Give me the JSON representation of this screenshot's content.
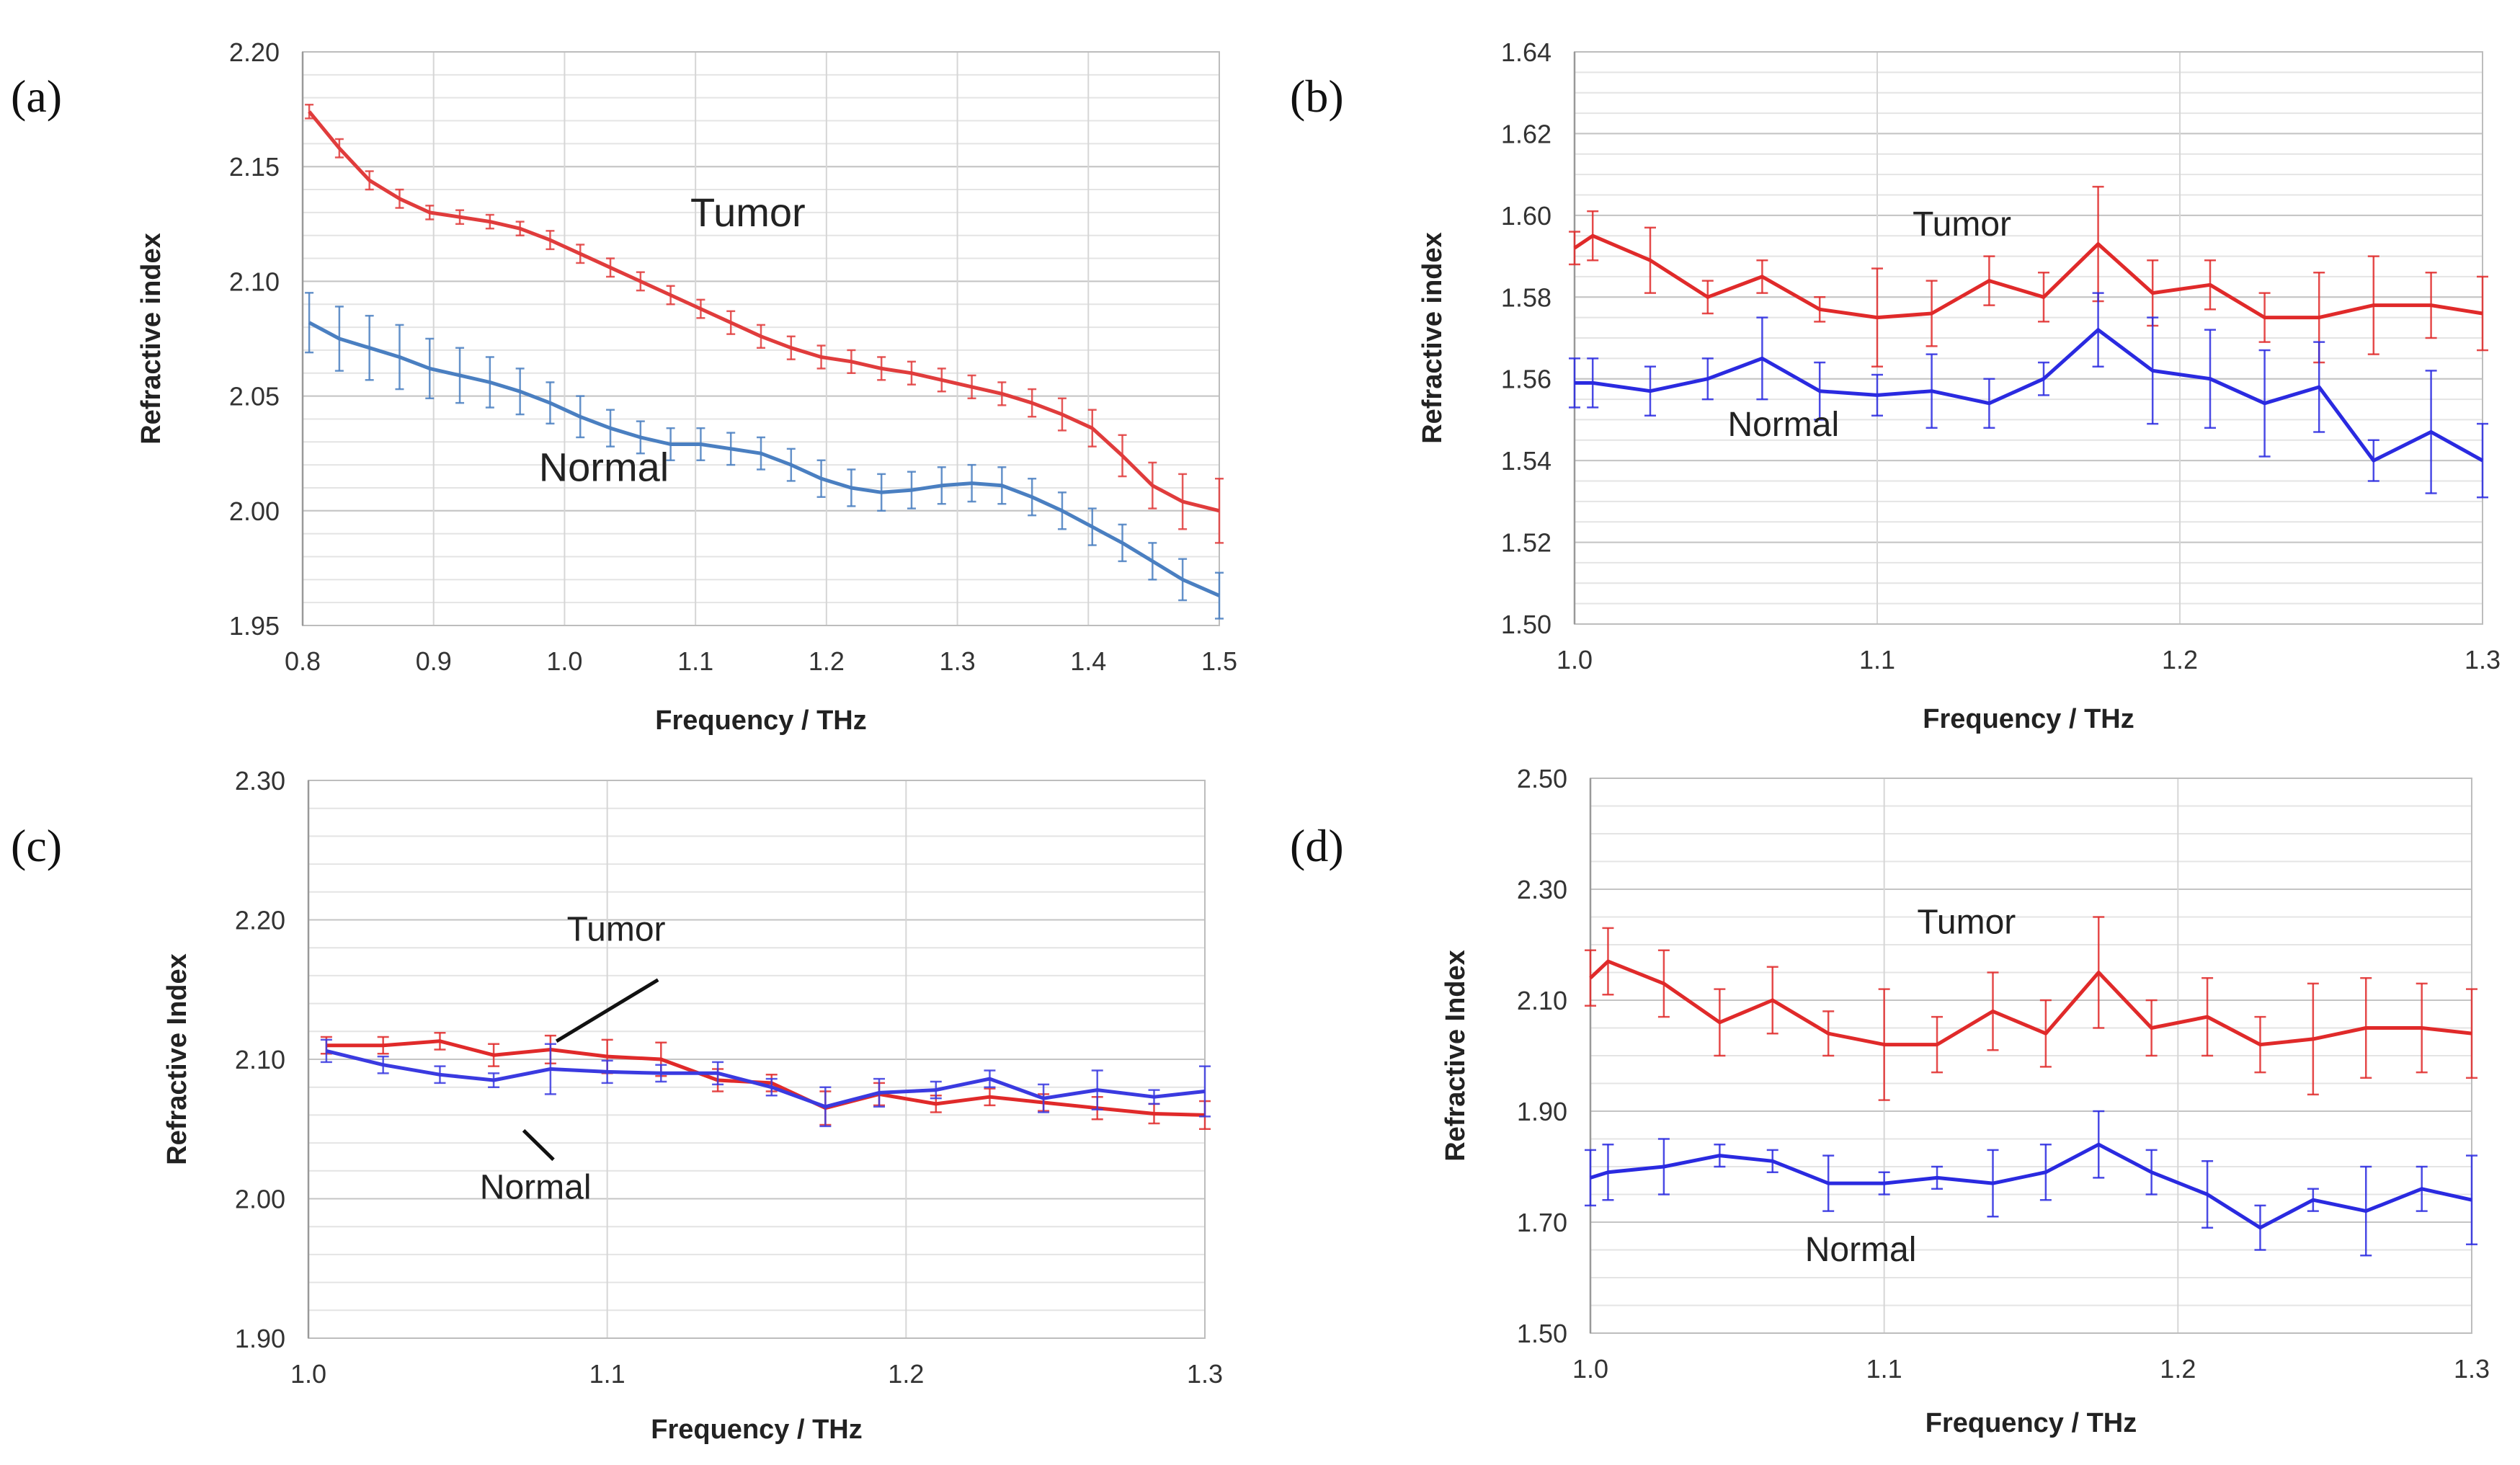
{
  "chart_data": [
    {
      "id": "a",
      "type": "line",
      "panel_label": "(a)",
      "xlabel": "Frequency / THz",
      "ylabel": "Refractive index",
      "xlim": [
        0.8,
        1.5
      ],
      "ylim": [
        1.95,
        2.2
      ],
      "xticks": [
        0.8,
        0.9,
        1.0,
        1.1,
        1.2,
        1.3,
        1.4,
        1.5
      ],
      "xtick_labels": [
        "0.8",
        "0.9",
        "1.0",
        "1.1",
        "1.2",
        "1.3",
        "1.4",
        "1.5"
      ],
      "yticks": [
        1.95,
        2.0,
        2.05,
        2.1,
        2.15,
        2.2
      ],
      "ytick_labels": [
        "1.95",
        "2.00",
        "2.05",
        "2.10",
        "2.15",
        "2.20"
      ],
      "minor_grid_step": 0.01,
      "annotations": [
        {
          "text": "Tumor",
          "x": 1.14,
          "y": 2.124
        },
        {
          "text": "Normal",
          "x": 1.03,
          "y": 2.013
        }
      ],
      "series": [
        {
          "name": "Tumor",
          "color": "#e03c3c",
          "x": [
            0.805,
            0.828,
            0.851,
            0.874,
            0.897,
            0.92,
            0.943,
            0.966,
            0.989,
            1.012,
            1.035,
            1.058,
            1.081,
            1.104,
            1.127,
            1.15,
            1.173,
            1.196,
            1.219,
            1.242,
            1.265,
            1.288,
            1.311,
            1.334,
            1.357,
            1.38,
            1.403,
            1.426,
            1.449,
            1.472,
            1.5
          ],
          "values": [
            2.174,
            2.158,
            2.144,
            2.136,
            2.13,
            2.128,
            2.126,
            2.123,
            2.118,
            2.112,
            2.106,
            2.1,
            2.094,
            2.088,
            2.082,
            2.076,
            2.071,
            2.067,
            2.065,
            2.062,
            2.06,
            2.057,
            2.054,
            2.051,
            2.047,
            2.042,
            2.036,
            2.024,
            2.011,
            2.004,
            2.0
          ],
          "error": [
            0.003,
            0.004,
            0.004,
            0.004,
            0.003,
            0.003,
            0.003,
            0.003,
            0.004,
            0.004,
            0.004,
            0.004,
            0.004,
            0.004,
            0.005,
            0.005,
            0.005,
            0.005,
            0.005,
            0.005,
            0.005,
            0.005,
            0.005,
            0.005,
            0.006,
            0.007,
            0.008,
            0.009,
            0.01,
            0.012,
            0.014
          ]
        },
        {
          "name": "Normal",
          "color": "#4a7fc1",
          "x": [
            0.805,
            0.828,
            0.851,
            0.874,
            0.897,
            0.92,
            0.943,
            0.966,
            0.989,
            1.012,
            1.035,
            1.058,
            1.081,
            1.104,
            1.127,
            1.15,
            1.173,
            1.196,
            1.219,
            1.242,
            1.265,
            1.288,
            1.311,
            1.334,
            1.357,
            1.38,
            1.403,
            1.426,
            1.449,
            1.472,
            1.5
          ],
          "values": [
            2.082,
            2.075,
            2.071,
            2.067,
            2.062,
            2.059,
            2.056,
            2.052,
            2.047,
            2.041,
            2.036,
            2.032,
            2.029,
            2.029,
            2.027,
            2.025,
            2.02,
            2.014,
            2.01,
            2.008,
            2.009,
            2.011,
            2.012,
            2.011,
            2.006,
            2.0,
            1.993,
            1.986,
            1.978,
            1.97,
            1.963
          ],
          "error": [
            0.013,
            0.014,
            0.014,
            0.014,
            0.013,
            0.012,
            0.011,
            0.01,
            0.009,
            0.009,
            0.008,
            0.007,
            0.007,
            0.007,
            0.007,
            0.007,
            0.007,
            0.008,
            0.008,
            0.008,
            0.008,
            0.008,
            0.008,
            0.008,
            0.008,
            0.008,
            0.008,
            0.008,
            0.008,
            0.009,
            0.01
          ]
        }
      ]
    },
    {
      "id": "b",
      "type": "line",
      "panel_label": "(b)",
      "xlabel": "Frequency / THz",
      "ylabel": "Refractive index",
      "xlim": [
        1.0,
        1.3
      ],
      "ylim": [
        1.5,
        1.64
      ],
      "xticks": [
        1.0,
        1.1,
        1.2,
        1.3
      ],
      "xtick_labels": [
        "1.0",
        "1.1",
        "1.2",
        "1.3"
      ],
      "yticks": [
        1.5,
        1.52,
        1.54,
        1.56,
        1.58,
        1.6,
        1.62,
        1.64
      ],
      "ytick_labels": [
        "1.50",
        "1.52",
        "1.54",
        "1.56",
        "1.58",
        "1.60",
        "1.62",
        "1.64"
      ],
      "minor_grid_step": 0.005,
      "annotations": [
        {
          "text": "Tumor",
          "x": 1.128,
          "y": 1.595
        },
        {
          "text": "Normal",
          "x": 1.069,
          "y": 1.546
        }
      ],
      "series": [
        {
          "name": "Tumor",
          "color": "#e02a2a",
          "x": [
            1.0,
            1.006,
            1.025,
            1.044,
            1.062,
            1.081,
            1.1,
            1.118,
            1.137,
            1.155,
            1.173,
            1.191,
            1.21,
            1.228,
            1.246,
            1.264,
            1.283,
            1.3
          ],
          "values": [
            1.592,
            1.595,
            1.589,
            1.58,
            1.585,
            1.577,
            1.575,
            1.576,
            1.584,
            1.58,
            1.593,
            1.581,
            1.583,
            1.575,
            1.575,
            1.578,
            1.578,
            1.576
          ],
          "error": [
            0.004,
            0.006,
            0.008,
            0.004,
            0.004,
            0.003,
            0.012,
            0.008,
            0.006,
            0.006,
            0.014,
            0.008,
            0.006,
            0.006,
            0.011,
            0.012,
            0.008,
            0.009
          ]
        },
        {
          "name": "Normal",
          "color": "#2a2ae0",
          "x": [
            1.0,
            1.006,
            1.025,
            1.044,
            1.062,
            1.081,
            1.1,
            1.118,
            1.137,
            1.155,
            1.173,
            1.191,
            1.21,
            1.228,
            1.246,
            1.264,
            1.283,
            1.3
          ],
          "values": [
            1.559,
            1.559,
            1.557,
            1.56,
            1.565,
            1.557,
            1.556,
            1.557,
            1.554,
            1.56,
            1.572,
            1.562,
            1.56,
            1.554,
            1.558,
            1.54,
            1.547,
            1.54
          ],
          "error": [
            0.006,
            0.006,
            0.006,
            0.005,
            0.01,
            0.007,
            0.005,
            0.009,
            0.006,
            0.004,
            0.009,
            0.013,
            0.012,
            0.013,
            0.011,
            0.005,
            0.015,
            0.009
          ]
        }
      ]
    },
    {
      "id": "c",
      "type": "line",
      "panel_label": "(c)",
      "xlabel": "Frequency / THz",
      "ylabel": "Refractive Index",
      "xlim": [
        1.0,
        1.3
      ],
      "ylim": [
        1.9,
        2.3
      ],
      "xticks": [
        1.0,
        1.1,
        1.2,
        1.3
      ],
      "xtick_labels": [
        "1.0",
        "1.1",
        "1.2",
        "1.3"
      ],
      "yticks": [
        1.9,
        2.0,
        2.1,
        2.2,
        2.3
      ],
      "ytick_labels": [
        "1.90",
        "2.00",
        "2.10",
        "2.20",
        "2.30"
      ],
      "minor_grid_step": 0.02,
      "annotations": [
        {
          "text": "Tumor",
          "x": 1.103,
          "y": 2.185
        },
        {
          "text": "Normal",
          "x": 1.076,
          "y": 2.0
        }
      ],
      "pointers": [
        {
          "from": [
            1.117,
            2.157
          ],
          "to": [
            1.083,
            2.113
          ]
        },
        {
          "from": [
            1.082,
            2.028
          ],
          "to": [
            1.072,
            2.049
          ]
        }
      ],
      "series": [
        {
          "name": "Tumor",
          "color": "#e02a2a",
          "x": [
            1.006,
            1.025,
            1.044,
            1.062,
            1.081,
            1.1,
            1.118,
            1.137,
            1.155,
            1.173,
            1.191,
            1.21,
            1.228,
            1.246,
            1.264,
            1.283,
            1.3
          ],
          "values": [
            2.11,
            2.11,
            2.113,
            2.103,
            2.107,
            2.102,
            2.1,
            2.085,
            2.083,
            2.065,
            2.075,
            2.068,
            2.073,
            2.069,
            2.065,
            2.061,
            2.06
          ],
          "error": [
            0.006,
            0.006,
            0.006,
            0.008,
            0.01,
            0.012,
            0.012,
            0.008,
            0.006,
            0.012,
            0.008,
            0.006,
            0.006,
            0.006,
            0.008,
            0.007,
            0.01
          ]
        },
        {
          "name": "Normal",
          "color": "#3a3ae0",
          "x": [
            1.006,
            1.025,
            1.044,
            1.062,
            1.081,
            1.1,
            1.118,
            1.137,
            1.155,
            1.173,
            1.191,
            1.21,
            1.228,
            1.246,
            1.264,
            1.283,
            1.3
          ],
          "values": [
            2.106,
            2.096,
            2.089,
            2.085,
            2.093,
            2.091,
            2.09,
            2.09,
            2.08,
            2.066,
            2.076,
            2.078,
            2.086,
            2.072,
            2.078,
            2.073,
            2.077
          ],
          "error": [
            0.008,
            0.006,
            0.006,
            0.005,
            0.018,
            0.008,
            0.006,
            0.008,
            0.006,
            0.014,
            0.01,
            0.006,
            0.006,
            0.01,
            0.014,
            0.005,
            0.018
          ]
        }
      ]
    },
    {
      "id": "d",
      "type": "line",
      "panel_label": "(d)",
      "xlabel": "Frequency / THz",
      "ylabel": "Refractive Index",
      "xlim": [
        1.0,
        1.3
      ],
      "ylim": [
        1.5,
        2.5
      ],
      "xticks": [
        1.0,
        1.1,
        1.2,
        1.3
      ],
      "xtick_labels": [
        "1.0",
        "1.1",
        "1.2",
        "1.3"
      ],
      "yticks": [
        1.5,
        1.7,
        1.9,
        2.1,
        2.3,
        2.5
      ],
      "ytick_labels": [
        "1.50",
        "1.70",
        "1.90",
        "2.10",
        "2.30",
        "2.50"
      ],
      "minor_grid_step": 0.05,
      "annotations": [
        {
          "text": "Tumor",
          "x": 1.128,
          "y": 2.22
        },
        {
          "text": "Normal",
          "x": 1.092,
          "y": 1.63
        }
      ],
      "series": [
        {
          "name": "Tumor",
          "color": "#e02a2a",
          "x": [
            1.0,
            1.006,
            1.025,
            1.044,
            1.062,
            1.081,
            1.1,
            1.118,
            1.137,
            1.155,
            1.173,
            1.191,
            1.21,
            1.228,
            1.246,
            1.264,
            1.283,
            1.3
          ],
          "values": [
            2.14,
            2.17,
            2.13,
            2.06,
            2.1,
            2.04,
            2.02,
            2.02,
            2.08,
            2.04,
            2.15,
            2.05,
            2.07,
            2.02,
            2.03,
            2.05,
            2.05,
            2.04
          ],
          "error": [
            0.05,
            0.06,
            0.06,
            0.06,
            0.06,
            0.04,
            0.1,
            0.05,
            0.07,
            0.06,
            0.1,
            0.05,
            0.07,
            0.05,
            0.1,
            0.09,
            0.08,
            0.08
          ]
        },
        {
          "name": "Normal",
          "color": "#2a2ae0",
          "x": [
            1.0,
            1.006,
            1.025,
            1.044,
            1.062,
            1.081,
            1.1,
            1.118,
            1.137,
            1.155,
            1.173,
            1.191,
            1.21,
            1.228,
            1.246,
            1.264,
            1.283,
            1.3
          ],
          "values": [
            1.78,
            1.79,
            1.8,
            1.82,
            1.81,
            1.77,
            1.77,
            1.78,
            1.77,
            1.79,
            1.84,
            1.79,
            1.75,
            1.69,
            1.74,
            1.72,
            1.76,
            1.74
          ],
          "error": [
            0.05,
            0.05,
            0.05,
            0.02,
            0.02,
            0.05,
            0.02,
            0.02,
            0.06,
            0.05,
            0.06,
            0.04,
            0.06,
            0.04,
            0.02,
            0.08,
            0.04,
            0.08
          ]
        }
      ]
    }
  ]
}
